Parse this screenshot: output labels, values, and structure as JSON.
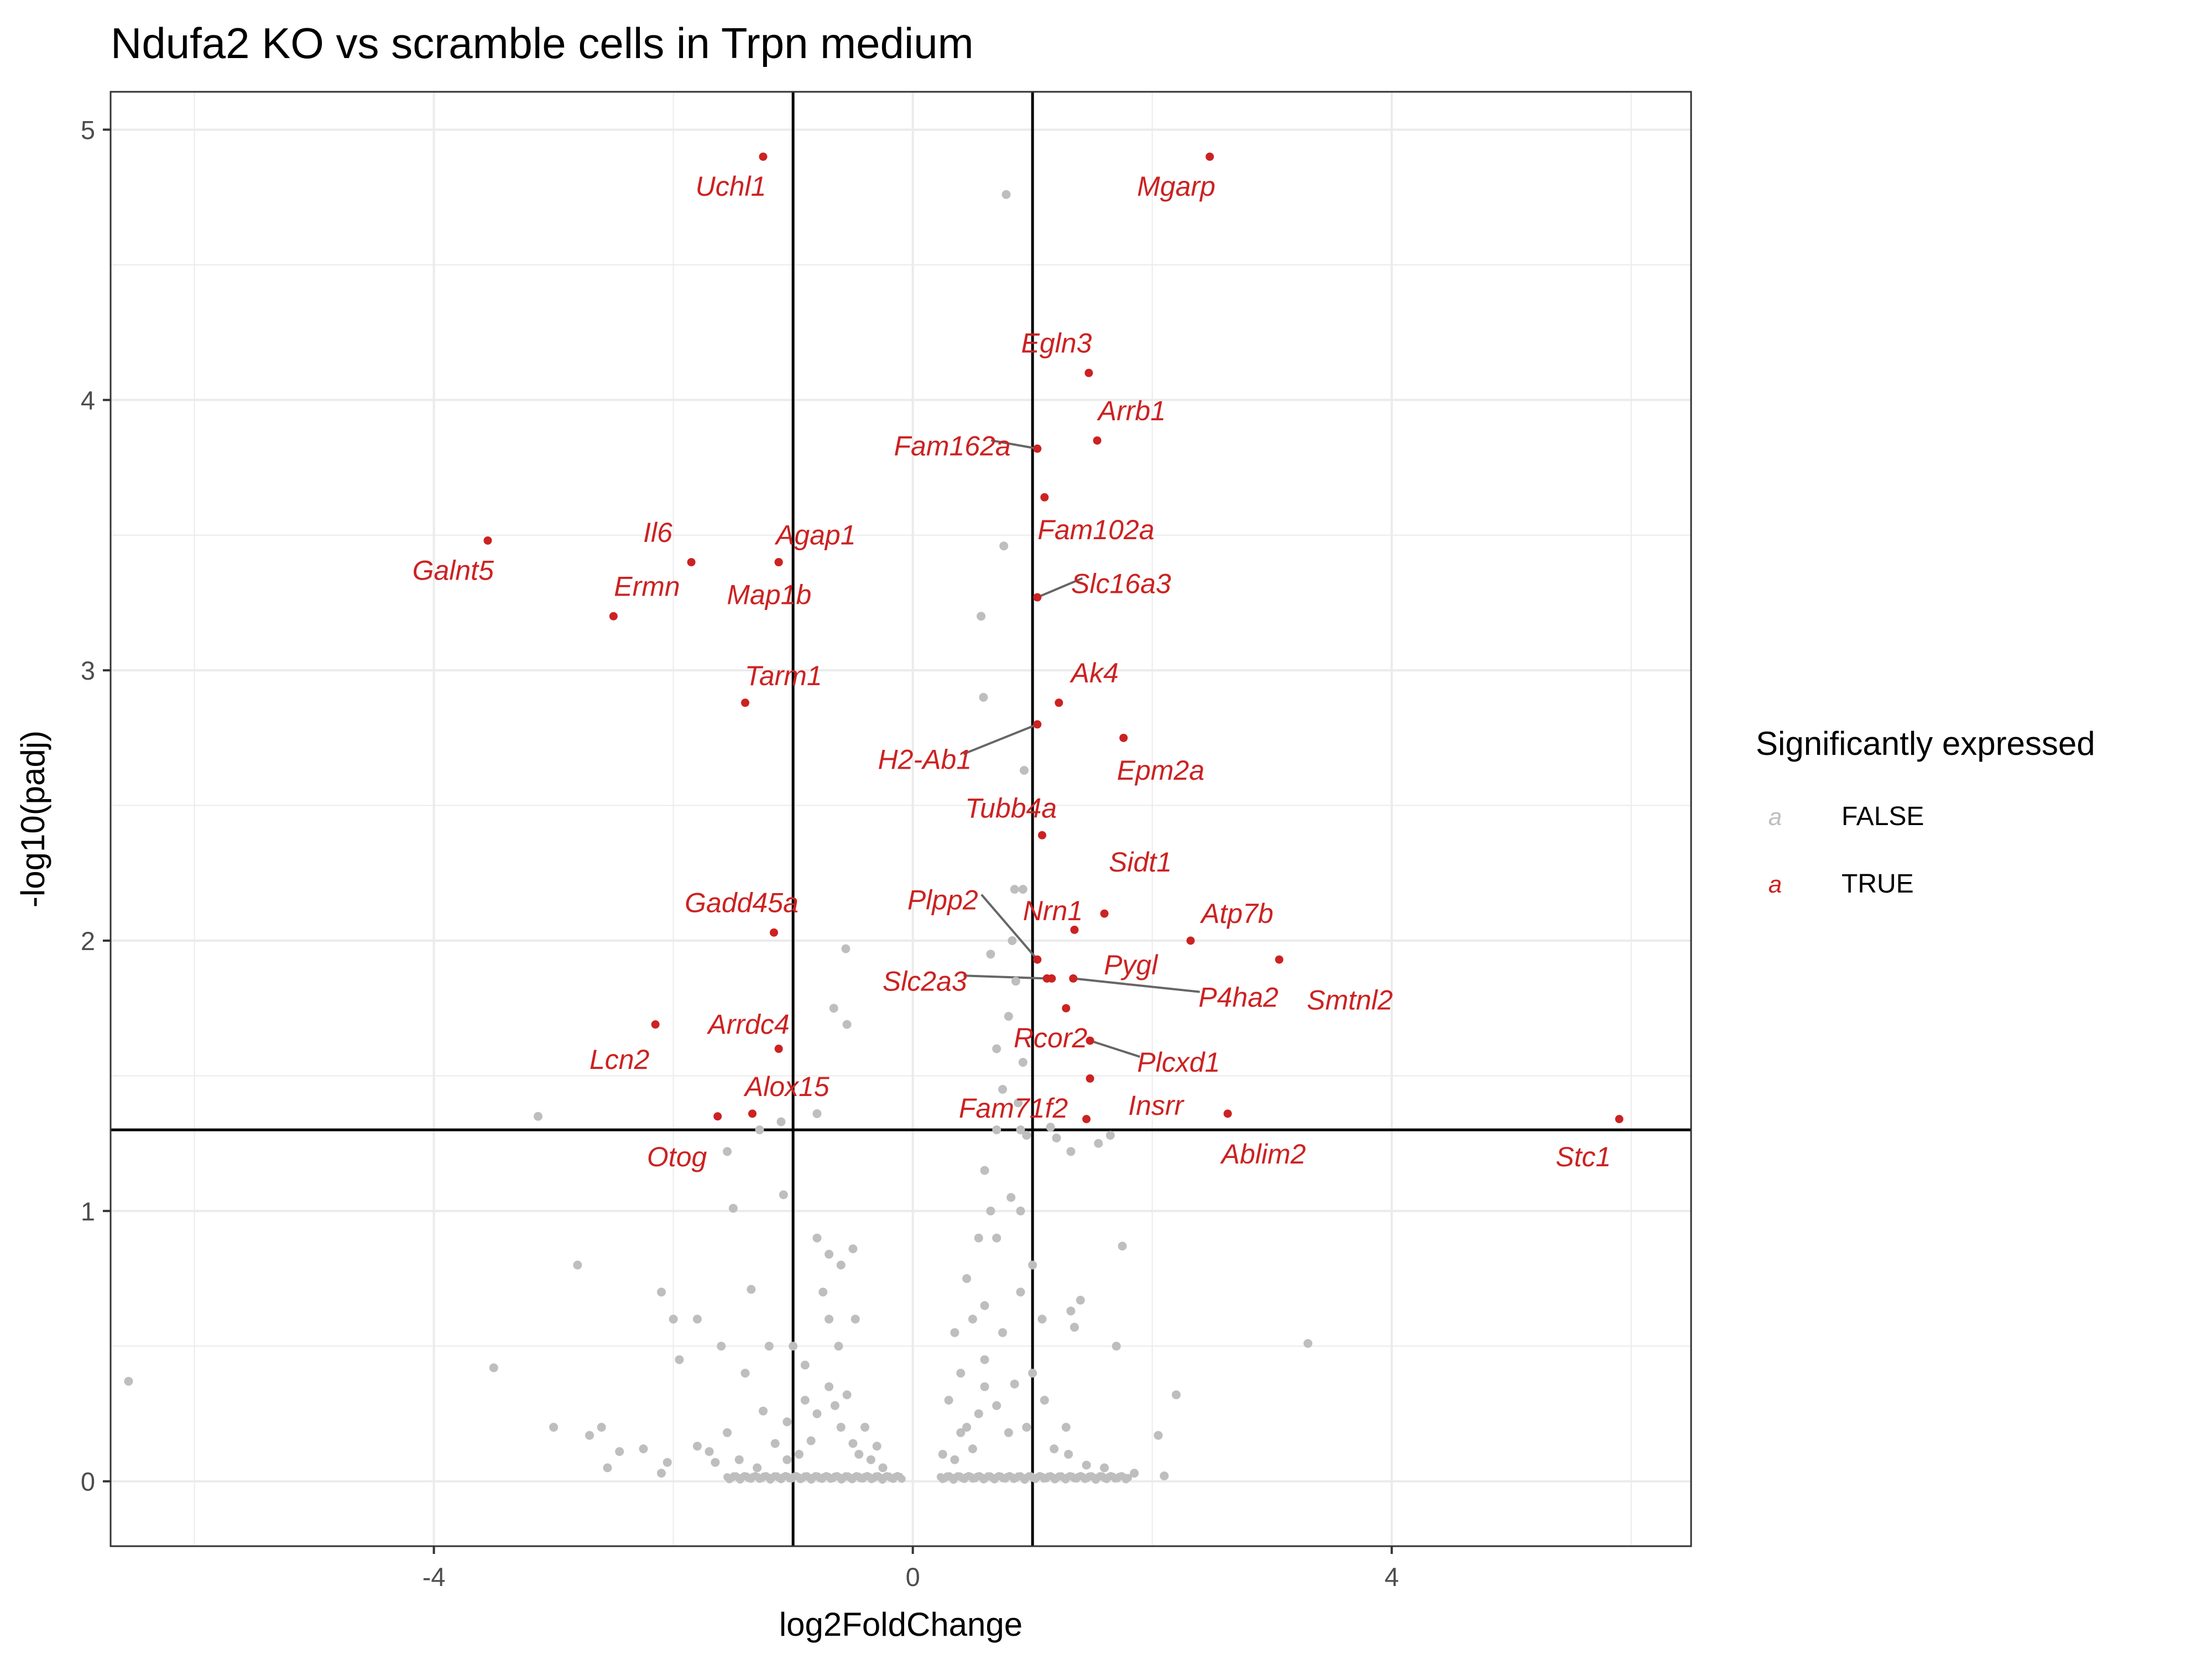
{
  "chart_data": {
    "type": "scatter",
    "title": "Ndufa2 KO vs scramble cells in Trpn medium",
    "xlabel": "log2FoldChange",
    "ylabel": "-log10(padj)",
    "xlim": [
      -6.7,
      6.5
    ],
    "ylim": [
      -0.24,
      5.14
    ],
    "x_ticks": [
      -4,
      0,
      4
    ],
    "x_tick_labels": [
      "-4",
      "0",
      "4"
    ],
    "y_ticks": [
      0,
      1,
      2,
      3,
      4,
      5
    ],
    "y_tick_labels": [
      "0",
      "1",
      "2",
      "3",
      "4",
      "5"
    ],
    "grid": true,
    "thresholds": {
      "log2fc": [
        -1,
        1
      ],
      "neg_log10_padj": 1.3
    },
    "legend": {
      "title": "Significantly expressed",
      "placement": "right",
      "entries": [
        {
          "label": "FALSE",
          "key": "a",
          "color": "#bebebe"
        },
        {
          "label": "TRUE",
          "key": "a",
          "color": "#cc2222"
        }
      ]
    },
    "colors": {
      "significant": "#cc2222",
      "not_significant": "#bebebe",
      "label_segment": "#666666"
    },
    "significant_genes": [
      {
        "gene": "Uchl1",
        "x": -1.25,
        "y": 4.9,
        "label_x": -1.52,
        "label_y": 4.79
      },
      {
        "gene": "Mgarp",
        "x": 2.48,
        "y": 4.9,
        "label_x": 2.2,
        "label_y": 4.79
      },
      {
        "gene": "Egln3",
        "x": 1.47,
        "y": 4.1,
        "label_x": 1.2,
        "label_y": 4.21
      },
      {
        "gene": "Arrb1",
        "x": 1.54,
        "y": 3.85,
        "label_x": 1.83,
        "label_y": 3.96
      },
      {
        "gene": "Fam162a",
        "x": 1.04,
        "y": 3.82,
        "label_x": 0.33,
        "label_y": 3.83
      },
      {
        "gene": "Fam102a",
        "x": 1.1,
        "y": 3.64,
        "label_x": 1.53,
        "label_y": 3.52
      },
      {
        "gene": "Galnt5",
        "x": -3.55,
        "y": 3.48,
        "label_x": -3.84,
        "label_y": 3.37
      },
      {
        "gene": "Il6",
        "x": -1.85,
        "y": 3.4,
        "label_x": -2.13,
        "label_y": 3.51
      },
      {
        "gene": "Agap1",
        "x": -1.12,
        "y": 3.4,
        "label_x": -0.81,
        "label_y": 3.5
      },
      {
        "gene": "Map1b",
        "x": -1.12,
        "y": 3.4,
        "label_x": -1.2,
        "label_y": 3.28
      },
      {
        "gene": "Ermn",
        "x": -2.5,
        "y": 3.2,
        "label_x": -2.22,
        "label_y": 3.31
      },
      {
        "gene": "Slc16a3",
        "x": 1.04,
        "y": 3.27,
        "label_x": 1.74,
        "label_y": 3.32
      },
      {
        "gene": "Tarm1",
        "x": -1.4,
        "y": 2.88,
        "label_x": -1.08,
        "label_y": 2.98
      },
      {
        "gene": "Ak4",
        "x": 1.22,
        "y": 2.88,
        "label_x": 1.52,
        "label_y": 2.99
      },
      {
        "gene": "H2-Ab1",
        "x": 1.04,
        "y": 2.8,
        "label_x": 0.1,
        "label_y": 2.67
      },
      {
        "gene": "Epm2a",
        "x": 1.76,
        "y": 2.75,
        "label_x": 2.07,
        "label_y": 2.63
      },
      {
        "gene": "Tubb4a",
        "x": 1.08,
        "y": 2.39,
        "label_x": 0.82,
        "label_y": 2.49
      },
      {
        "gene": "Sidt1",
        "x": 1.6,
        "y": 2.1,
        "label_x": 1.9,
        "label_y": 2.29
      },
      {
        "gene": "Gadd45a",
        "x": -1.16,
        "y": 2.03,
        "label_x": -1.43,
        "label_y": 2.14
      },
      {
        "gene": "Plpp2",
        "x": 1.04,
        "y": 1.93,
        "label_x": 0.25,
        "label_y": 2.15
      },
      {
        "gene": "Nrn1",
        "x": 1.35,
        "y": 2.04,
        "label_x": 1.17,
        "label_y": 2.11
      },
      {
        "gene": "Atp7b",
        "x": 2.32,
        "y": 2.0,
        "label_x": 2.71,
        "label_y": 2.1
      },
      {
        "gene": "Smtnl2",
        "x": 3.06,
        "y": 1.93,
        "label_x": 3.65,
        "label_y": 1.78
      },
      {
        "gene": "Pygl",
        "x": 1.16,
        "y": 1.86,
        "label_x": 1.82,
        "label_y": 1.91
      },
      {
        "gene": "Slc2a3",
        "x": 1.12,
        "y": 1.86,
        "label_x": 0.1,
        "label_y": 1.85
      },
      {
        "gene": "P4ha2",
        "x": 1.34,
        "y": 1.86,
        "label_x": 2.72,
        "label_y": 1.79
      },
      {
        "gene": "Rcor2",
        "x": 1.28,
        "y": 1.75,
        "label_x": 1.15,
        "label_y": 1.64
      },
      {
        "gene": "Arrdc4",
        "x": -1.12,
        "y": 1.6,
        "label_x": -1.37,
        "label_y": 1.69
      },
      {
        "gene": "Lcn2",
        "x": -2.15,
        "y": 1.69,
        "label_x": -2.45,
        "label_y": 1.56
      },
      {
        "gene": "Plcxd1",
        "x": 1.48,
        "y": 1.63,
        "label_x": 2.22,
        "label_y": 1.55
      },
      {
        "gene": "Alox15",
        "x": -1.34,
        "y": 1.36,
        "label_x": -1.05,
        "label_y": 1.46
      },
      {
        "gene": "Insrr",
        "x": 1.48,
        "y": 1.49,
        "label_x": 2.03,
        "label_y": 1.39
      },
      {
        "gene": "Fam71f2",
        "x": 1.45,
        "y": 1.34,
        "label_x": 0.84,
        "label_y": 1.38
      },
      {
        "gene": "Ablim2",
        "x": 2.63,
        "y": 1.36,
        "label_x": 2.93,
        "label_y": 1.21
      },
      {
        "gene": "Otog",
        "x": -1.63,
        "y": 1.35,
        "label_x": -1.97,
        "label_y": 1.2
      },
      {
        "gene": "Stc1",
        "x": 5.9,
        "y": 1.34,
        "label_x": 5.6,
        "label_y": 1.2
      }
    ],
    "nonsignificant_points": [
      [
        0.78,
        4.76
      ],
      [
        0.76,
        3.46
      ],
      [
        0.57,
        3.2
      ],
      [
        0.59,
        2.9
      ],
      [
        0.93,
        2.63
      ],
      [
        0.85,
        2.19
      ],
      [
        0.92,
        2.19
      ],
      [
        -0.56,
        1.97
      ],
      [
        -0.66,
        1.75
      ],
      [
        -0.55,
        1.69
      ],
      [
        0.65,
        1.95
      ],
      [
        0.8,
        1.72
      ],
      [
        -1.1,
        1.33
      ],
      [
        -0.8,
        1.36
      ],
      [
        -1.28,
        1.3
      ],
      [
        -1.55,
        1.22
      ],
      [
        -1.5,
        1.01
      ],
      [
        -1.08,
        1.06
      ],
      [
        0.9,
        1.3
      ],
      [
        0.95,
        1.28
      ],
      [
        1.15,
        1.31
      ],
      [
        1.2,
        1.27
      ],
      [
        1.32,
        1.22
      ],
      [
        1.65,
        1.28
      ],
      [
        1.55,
        1.25
      ],
      [
        -3.13,
        1.35
      ],
      [
        -2.8,
        0.8
      ],
      [
        -3.5,
        0.42
      ],
      [
        -6.55,
        0.37
      ],
      [
        3.3,
        0.51
      ],
      [
        2.2,
        0.32
      ],
      [
        2.05,
        0.17
      ],
      [
        1.75,
        0.87
      ],
      [
        1.7,
        0.5
      ],
      [
        1.4,
        0.67
      ],
      [
        1.35,
        0.57
      ],
      [
        1.28,
        0.2
      ],
      [
        1.32,
        0.63
      ],
      [
        -2.1,
        0.7
      ],
      [
        -2.0,
        0.6
      ],
      [
        -1.95,
        0.45
      ],
      [
        -1.8,
        0.6
      ],
      [
        -1.6,
        0.5
      ],
      [
        -1.4,
        0.4
      ],
      [
        -1.35,
        0.71
      ],
      [
        -1.2,
        0.5
      ],
      [
        -1.0,
        0.5
      ],
      [
        -0.9,
        0.43
      ],
      [
        -0.7,
        0.6
      ],
      [
        -0.6,
        0.8
      ],
      [
        -0.5,
        0.86
      ],
      [
        -0.48,
        0.6
      ],
      [
        -0.8,
        0.9
      ],
      [
        -0.7,
        0.84
      ],
      [
        -0.75,
        0.7
      ],
      [
        -0.62,
        0.5
      ],
      [
        -0.55,
        0.32
      ],
      [
        -0.65,
        0.28
      ],
      [
        -0.3,
        0.13
      ],
      [
        -0.25,
        0.05
      ],
      [
        -0.4,
        0.2
      ],
      [
        -0.85,
        0.15
      ],
      [
        -1.05,
        0.22
      ],
      [
        -1.25,
        0.26
      ],
      [
        -1.55,
        0.18
      ],
      [
        -1.8,
        0.13
      ],
      [
        -2.05,
        0.07
      ],
      [
        -2.25,
        0.12
      ],
      [
        -2.45,
        0.11
      ],
      [
        -2.6,
        0.2
      ],
      [
        -2.55,
        0.05
      ],
      [
        -2.1,
        0.03
      ],
      [
        -1.7,
        0.11
      ],
      [
        -2.7,
        0.17
      ],
      [
        -3.0,
        0.2
      ],
      [
        0.3,
        0.3
      ],
      [
        0.4,
        0.4
      ],
      [
        0.35,
        0.55
      ],
      [
        0.5,
        0.6
      ],
      [
        0.45,
        0.75
      ],
      [
        0.6,
        0.65
      ],
      [
        0.55,
        0.9
      ],
      [
        0.7,
        0.9
      ],
      [
        0.65,
        1.0
      ],
      [
        0.6,
        1.15
      ],
      [
        0.7,
        1.3
      ],
      [
        0.75,
        1.45
      ],
      [
        0.7,
        1.6
      ],
      [
        0.82,
        1.05
      ],
      [
        0.88,
        1.4
      ],
      [
        0.92,
        1.55
      ],
      [
        0.86,
        1.85
      ],
      [
        0.83,
        2.0
      ],
      [
        0.9,
        1.0
      ],
      [
        1.0,
        0.8
      ],
      [
        1.08,
        0.6
      ],
      [
        1.0,
        0.4
      ],
      [
        1.1,
        0.3
      ],
      [
        0.95,
        0.2
      ],
      [
        0.8,
        0.18
      ],
      [
        0.4,
        0.18
      ],
      [
        0.25,
        0.1
      ],
      [
        0.35,
        0.08
      ],
      [
        0.5,
        0.12
      ],
      [
        1.18,
        0.12
      ],
      [
        1.3,
        0.1
      ],
      [
        1.45,
        0.06
      ],
      [
        1.6,
        0.05
      ],
      [
        1.85,
        0.03
      ],
      [
        2.1,
        0.02
      ],
      [
        0.6,
        0.45
      ],
      [
        0.55,
        0.25
      ],
      [
        0.45,
        0.2
      ],
      [
        0.7,
        0.28
      ],
      [
        0.85,
        0.36
      ],
      [
        0.75,
        0.55
      ],
      [
        0.9,
        0.7
      ],
      [
        0.6,
        0.35
      ],
      [
        -0.9,
        0.3
      ],
      [
        -0.8,
        0.25
      ],
      [
        -0.7,
        0.35
      ],
      [
        -0.6,
        0.2
      ],
      [
        -0.5,
        0.14
      ],
      [
        -0.45,
        0.1
      ],
      [
        -0.35,
        0.08
      ],
      [
        -0.95,
        0.1
      ],
      [
        -1.15,
        0.14
      ],
      [
        -1.45,
        0.08
      ],
      [
        -1.65,
        0.07
      ],
      [
        -1.3,
        0.05
      ],
      [
        -1.05,
        0.08
      ]
    ]
  }
}
